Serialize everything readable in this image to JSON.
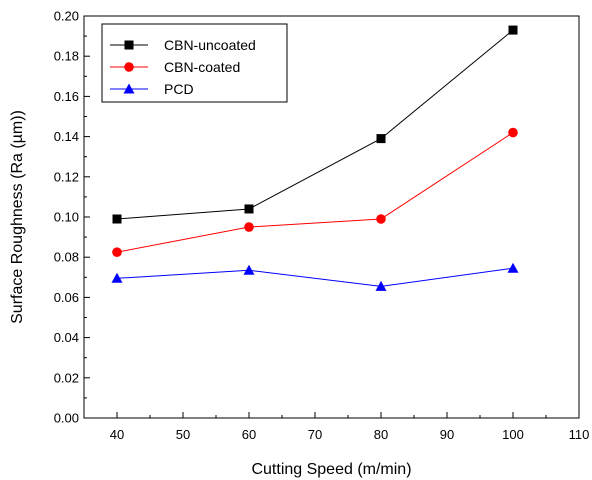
{
  "chart_data": {
    "type": "line",
    "xlabel": "Cutting Speed (m/min)",
    "ylabel": "Surface Roughness (Ra (µm))",
    "xlim": [
      35,
      110
    ],
    "ylim": [
      0.0,
      0.2
    ],
    "x_ticks": [
      40,
      50,
      60,
      70,
      80,
      90,
      100,
      110
    ],
    "x_tick_labels": [
      "40",
      "50",
      "60",
      "70",
      "80",
      "90",
      "100",
      "110"
    ],
    "y_ticks": [
      0.0,
      0.02,
      0.04,
      0.06,
      0.08,
      0.1,
      0.12,
      0.14,
      0.16,
      0.18,
      0.2
    ],
    "y_tick_labels": [
      "0.00",
      "0.02",
      "0.04",
      "0.06",
      "0.08",
      "0.10",
      "0.12",
      "0.14",
      "0.16",
      "0.18",
      "0.20"
    ],
    "grid": false,
    "legend_position": "top-left",
    "x": [
      40,
      60,
      80,
      100
    ],
    "series": [
      {
        "name": "CBN-uncoated",
        "values": [
          0.099,
          0.104,
          0.139,
          0.193
        ],
        "color": "#000000",
        "marker": "square"
      },
      {
        "name": "CBN-coated",
        "values": [
          0.0825,
          0.095,
          0.099,
          0.142
        ],
        "color": "#ff0000",
        "marker": "circle"
      },
      {
        "name": "PCD",
        "values": [
          0.0695,
          0.0735,
          0.0655,
          0.0745
        ],
        "color": "#0000ff",
        "marker": "triangle"
      }
    ]
  }
}
